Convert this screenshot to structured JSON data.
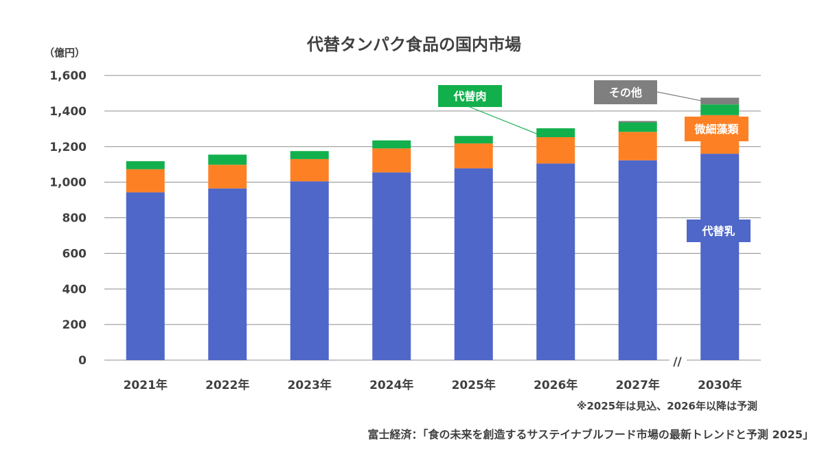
{
  "chart_data": {
    "type": "bar",
    "stacked": true,
    "title": "代替タンパク食品の国内市場",
    "unit_label": "（億円）",
    "ylim": [
      0,
      1600
    ],
    "yticks": [
      "0",
      "200",
      "400",
      "600",
      "800",
      "1,000",
      "1,200",
      "1,400",
      "1,600"
    ],
    "ytick_values": [
      0,
      200,
      400,
      600,
      800,
      1000,
      1200,
      1400,
      1600
    ],
    "grid": true,
    "axis_break_between": [
      "2027年",
      "2030年"
    ],
    "axis_break_mark": "//",
    "categories": [
      "2021年",
      "2022年",
      "2023年",
      "2024年",
      "2025年",
      "2026年",
      "2027年",
      "2030年"
    ],
    "series": [
      {
        "name": "代替乳",
        "color": "#4e67c8",
        "values": [
          943,
          965,
          1005,
          1055,
          1078,
          1105,
          1123,
          1160
        ]
      },
      {
        "name": "微細藻類",
        "color": "#fd8124",
        "values": [
          130,
          133,
          125,
          135,
          140,
          148,
          160,
          217
        ]
      },
      {
        "name": "代替肉",
        "color": "#12b04d",
        "values": [
          45,
          57,
          45,
          45,
          42,
          50,
          53,
          60
        ]
      },
      {
        "name": "その他",
        "color": "#7f7f7f",
        "values": [
          0,
          0,
          0,
          0,
          0,
          0,
          8,
          38
        ]
      }
    ],
    "series_label_colors": {
      "代替乳": "#4e67c8",
      "微細藻類": "#fd8124",
      "代替肉": "#12b04d",
      "その他": "#7f7f7f"
    },
    "note": "※2025年は見込、2026年以降は予測",
    "source": "富士経済：「食の未来を創造するサステイナブルフード市場の最新トレンドと予測 2025」"
  }
}
